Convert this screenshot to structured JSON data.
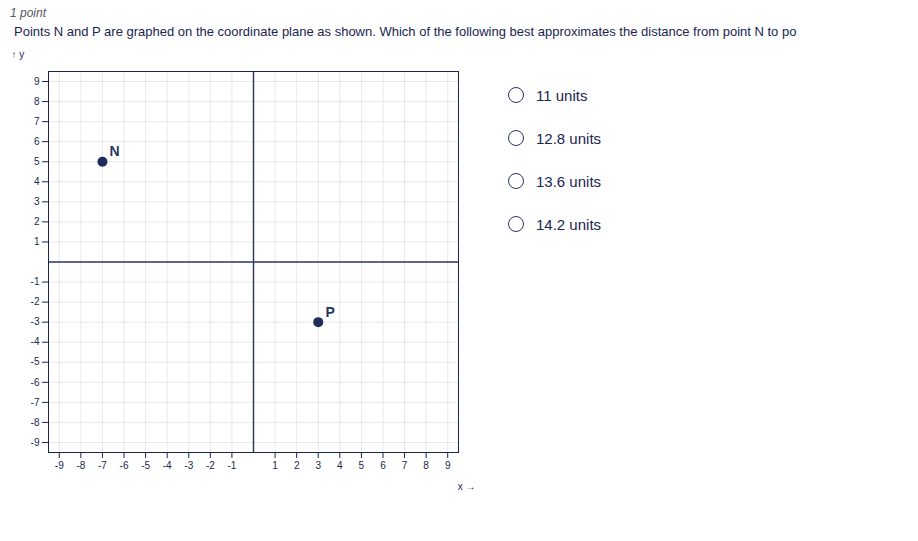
{
  "chart_data": {
    "type": "scatter",
    "subtitle": "1 point",
    "title": "Points N and P are graphed on the coordinate plane as shown. Which of the following best approximates the distance from point N to po",
    "x": [
      -7,
      3
    ],
    "y": [
      5,
      -3
    ],
    "labels": [
      "N",
      "P"
    ],
    "color": "#1e2d5a",
    "xlabel": "x",
    "ylabel": "y",
    "xlim": [
      -9.5,
      9.5
    ],
    "ylim": [
      -9.5,
      9.5
    ],
    "xticks": [
      -9,
      -8,
      -7,
      -6,
      -5,
      -4,
      -3,
      -2,
      -1,
      1,
      2,
      3,
      4,
      5,
      6,
      7,
      8,
      9
    ],
    "yticks": [
      -9,
      -8,
      -7,
      -6,
      -5,
      -4,
      -3,
      -2,
      -1,
      1,
      2,
      3,
      4,
      5,
      6,
      7,
      8,
      9
    ],
    "grid": true,
    "annotations": [
      "11 units",
      "12.8 units",
      "13.6 units",
      "14.2 units"
    ]
  }
}
